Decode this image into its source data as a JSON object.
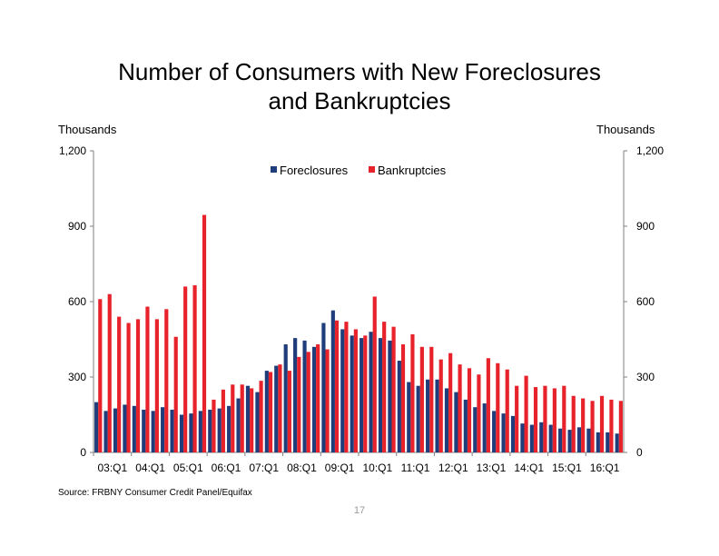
{
  "slide": {
    "title_line1": "Number of Consumers with New Foreclosures",
    "title_line2": "and Bankruptcies",
    "source": "Source: FRBNY Consumer Credit Panel/Equifax",
    "page_number": "17"
  },
  "colors": {
    "foreclosures": "#1f3d7a",
    "bankruptcies": "#e8222a",
    "axis": "#7f7f7f"
  },
  "chart_data": {
    "type": "bar",
    "left_axis_label": "Thousands",
    "right_axis_label": "Thousands",
    "ylim": [
      0,
      1200
    ],
    "yticks": [
      0,
      300,
      600,
      900,
      1200
    ],
    "ytick_labels": [
      "0",
      "300",
      "600",
      "900",
      "1,200"
    ],
    "grid": false,
    "legend_position": "top-center",
    "categories": [
      "03:Q1",
      "03:Q2",
      "03:Q3",
      "03:Q4",
      "04:Q1",
      "04:Q2",
      "04:Q3",
      "04:Q4",
      "05:Q1",
      "05:Q2",
      "05:Q3",
      "05:Q4",
      "06:Q1",
      "06:Q2",
      "06:Q3",
      "06:Q4",
      "07:Q1",
      "07:Q2",
      "07:Q3",
      "07:Q4",
      "08:Q1",
      "08:Q2",
      "08:Q3",
      "08:Q4",
      "09:Q1",
      "09:Q2",
      "09:Q3",
      "09:Q4",
      "10:Q1",
      "10:Q2",
      "10:Q3",
      "10:Q4",
      "11:Q1",
      "11:Q2",
      "11:Q3",
      "11:Q4",
      "12:Q1",
      "12:Q2",
      "12:Q3",
      "12:Q4",
      "13:Q1",
      "13:Q2",
      "13:Q3",
      "13:Q4",
      "14:Q1",
      "14:Q2",
      "14:Q3",
      "14:Q4",
      "15:Q1",
      "15:Q2",
      "15:Q3",
      "15:Q4",
      "16:Q1",
      "16:Q2",
      "16:Q3",
      "16:Q4"
    ],
    "x_tick_labels": [
      "03:Q1",
      "04:Q1",
      "05:Q1",
      "06:Q1",
      "07:Q1",
      "08:Q1",
      "09:Q1",
      "10:Q1",
      "11:Q1",
      "12:Q1",
      "13:Q1",
      "14:Q1",
      "15:Q1",
      "16:Q1"
    ],
    "series": [
      {
        "name": "Foreclosures",
        "values": [
          200,
          165,
          175,
          190,
          185,
          170,
          165,
          180,
          170,
          150,
          155,
          165,
          170,
          175,
          185,
          215,
          265,
          240,
          325,
          345,
          430,
          455,
          445,
          420,
          515,
          565,
          490,
          465,
          455,
          480,
          455,
          445,
          365,
          280,
          265,
          290,
          290,
          255,
          240,
          210,
          180,
          195,
          165,
          155,
          145,
          115,
          110,
          120,
          110,
          95,
          90,
          100,
          95,
          80,
          80,
          75
        ]
      },
      {
        "name": "Bankruptcies",
        "values": [
          610,
          630,
          540,
          515,
          530,
          580,
          530,
          570,
          460,
          660,
          665,
          945,
          210,
          250,
          270,
          270,
          255,
          285,
          320,
          350,
          325,
          380,
          400,
          430,
          410,
          525,
          520,
          490,
          465,
          620,
          520,
          500,
          430,
          470,
          420,
          420,
          370,
          395,
          350,
          335,
          310,
          375,
          355,
          330,
          265,
          305,
          260,
          265,
          255,
          265,
          225,
          215,
          205,
          225,
          210,
          205
        ]
      }
    ]
  }
}
